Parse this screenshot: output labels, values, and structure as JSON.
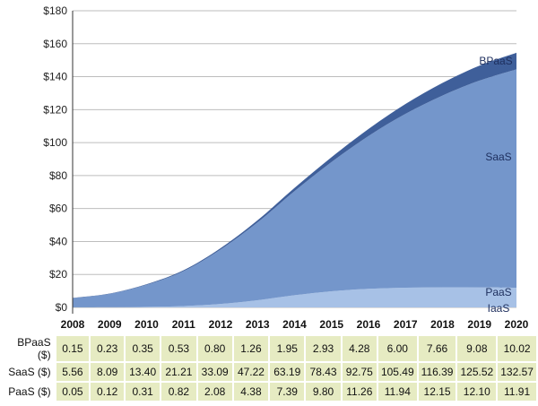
{
  "chart_data": {
    "type": "area",
    "stacked": true,
    "categories": [
      "2008",
      "2009",
      "2010",
      "2011",
      "2012",
      "2013",
      "2014",
      "2015",
      "2016",
      "2017",
      "2018",
      "2019",
      "2020"
    ],
    "series": [
      {
        "name": "IaaS",
        "values": [
          0.0,
          0.0,
          0.0,
          0.0,
          0.0,
          0.0,
          0.0,
          0.0,
          0.0,
          0.0,
          0.0,
          0.0,
          0.0
        ]
      },
      {
        "name": "PaaS",
        "values": [
          0.05,
          0.12,
          0.31,
          0.82,
          2.08,
          4.38,
          7.39,
          9.8,
          11.26,
          11.94,
          12.15,
          12.1,
          11.91
        ]
      },
      {
        "name": "SaaS",
        "values": [
          5.56,
          8.09,
          13.4,
          21.21,
          33.09,
          47.22,
          63.19,
          78.43,
          92.75,
          105.49,
          116.39,
          125.52,
          132.57
        ]
      },
      {
        "name": "BPaaS",
        "values": [
          0.15,
          0.23,
          0.35,
          0.53,
          0.8,
          1.26,
          1.95,
          2.93,
          4.28,
          6.0,
          7.66,
          9.08,
          10.02
        ]
      }
    ],
    "ylim": [
      0,
      180
    ],
    "yticks": [
      "$0",
      "$20",
      "$40",
      "$60",
      "$80",
      "$100",
      "$120",
      "$140",
      "$160",
      "$180"
    ],
    "colors": {
      "IaaS": "#c9d8ef",
      "PaaS": "#a7c1e6",
      "SaaS": "#7496cb",
      "BPaaS": "#3f5f9a"
    },
    "grid": true,
    "table": {
      "rows": [
        {
          "label": "BPaaS ($)",
          "values": [
            "0.15",
            "0.23",
            "0.35",
            "0.53",
            "0.80",
            "1.26",
            "1.95",
            "2.93",
            "4.28",
            "6.00",
            "7.66",
            "9.08",
            "10.02"
          ]
        },
        {
          "label": "SaaS ($)",
          "values": [
            "5.56",
            "8.09",
            "13.40",
            "21.21",
            "33.09",
            "47.22",
            "63.19",
            "78.43",
            "92.75",
            "105.49",
            "116.39",
            "125.52",
            "132.57"
          ]
        },
        {
          "label": "PaaS ($)",
          "values": [
            "0.05",
            "0.12",
            "0.31",
            "0.82",
            "2.08",
            "4.38",
            "7.39",
            "9.80",
            "11.26",
            "11.94",
            "12.15",
            "12.10",
            "11.91"
          ]
        }
      ]
    }
  }
}
